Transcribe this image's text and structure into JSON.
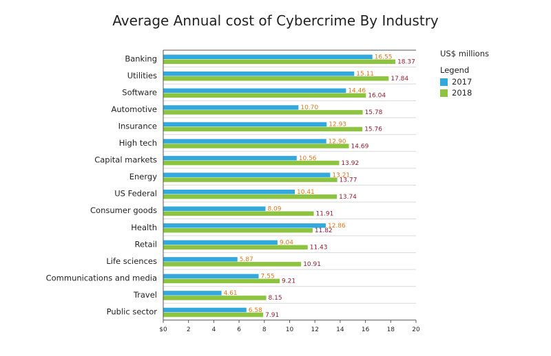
{
  "title": "Average Annual cost of Cybercrime By Industry",
  "units": "US$ millions",
  "legend": {
    "title": "Legend",
    "items": [
      {
        "label": "2017",
        "color": "#33a8dc"
      },
      {
        "label": "2018",
        "color": "#8cc43f"
      }
    ]
  },
  "colors": {
    "series_2017": "#33a8dc",
    "series_2018": "#8cc43f",
    "label_2017": "#e0761f",
    "label_2018": "#8c1d2e",
    "gridline": "#d9d9d9",
    "axis": "#555555"
  },
  "chart_data": {
    "type": "bar",
    "orientation": "horizontal",
    "title": "Average Annual cost of Cybercrime By Industry",
    "xlabel": "",
    "ylabel": "",
    "unit": "US$ millions",
    "categories": [
      "Banking",
      "Utilities",
      "Software",
      "Automotive",
      "Insurance",
      "High tech",
      "Capital markets",
      "Energy",
      "US Federal",
      "Consumer goods",
      "Health",
      "Retail",
      "Life sciences",
      "Communications and media",
      "Travel",
      "Public sector"
    ],
    "series": [
      {
        "name": "2017",
        "values": [
          16.55,
          15.11,
          14.46,
          10.7,
          12.93,
          12.9,
          10.56,
          13.21,
          10.41,
          8.09,
          12.86,
          9.04,
          5.87,
          7.55,
          4.61,
          6.58
        ],
        "labels": [
          "16.55",
          "15.11",
          "14.46",
          "10.70",
          "12.93",
          "12.90",
          "10.56",
          "13.21",
          "10.41",
          "8.09",
          "12.86",
          "9.04",
          "5.87",
          "7.55",
          "4.61",
          "6.58"
        ]
      },
      {
        "name": "2018",
        "values": [
          18.37,
          17.84,
          16.04,
          15.78,
          15.76,
          14.69,
          13.92,
          13.77,
          13.74,
          11.91,
          11.82,
          11.43,
          10.91,
          9.21,
          8.15,
          7.91
        ],
        "labels": [
          "18.37",
          "17.84",
          "16.04",
          "15.78",
          "15.76",
          "14.69",
          "13.92",
          "13.77",
          "13.74",
          "11.91",
          "11.82",
          "11.43",
          "10.91",
          "9.21",
          "8.15",
          "7.91"
        ]
      }
    ],
    "xlim": [
      0,
      20
    ],
    "x_ticks": [
      0,
      2,
      4,
      6,
      8,
      10,
      12,
      14,
      16,
      18,
      20
    ],
    "x_tick_labels": [
      "$0",
      "2",
      "4",
      "6",
      "8",
      "10",
      "12",
      "14",
      "16",
      "18",
      "20"
    ],
    "grid": "horizontal row separators",
    "legend_position": "right"
  }
}
